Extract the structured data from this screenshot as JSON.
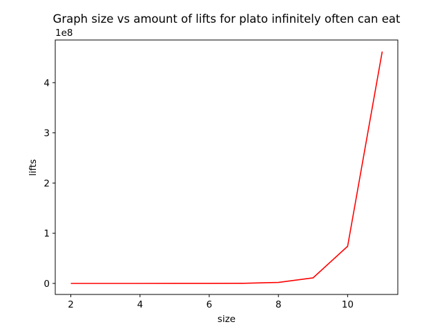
{
  "chart_data": {
    "type": "line",
    "title": "Graph size vs amount of lifts for plato infinitely often can eat",
    "xlabel": "size",
    "ylabel": "lifts",
    "offset_text": "1e8",
    "xlim": [
      1.55,
      11.45
    ],
    "ylim": [
      -22000000,
      485000000
    ],
    "xticks": [
      2,
      4,
      6,
      8,
      10
    ],
    "yticks": [
      0,
      100000000,
      200000000,
      300000000,
      400000000
    ],
    "ytick_labels": [
      "0",
      "1",
      "2",
      "3",
      "4"
    ],
    "grid": false,
    "line_color": "#ff0000",
    "series": [
      {
        "x": [
          2,
          3,
          4,
          5,
          6,
          7,
          8,
          9,
          10,
          11
        ],
        "values": [
          10,
          100,
          1000,
          10000,
          100000,
          300000,
          2000000,
          11000000,
          74000000,
          462000000
        ]
      }
    ]
  }
}
